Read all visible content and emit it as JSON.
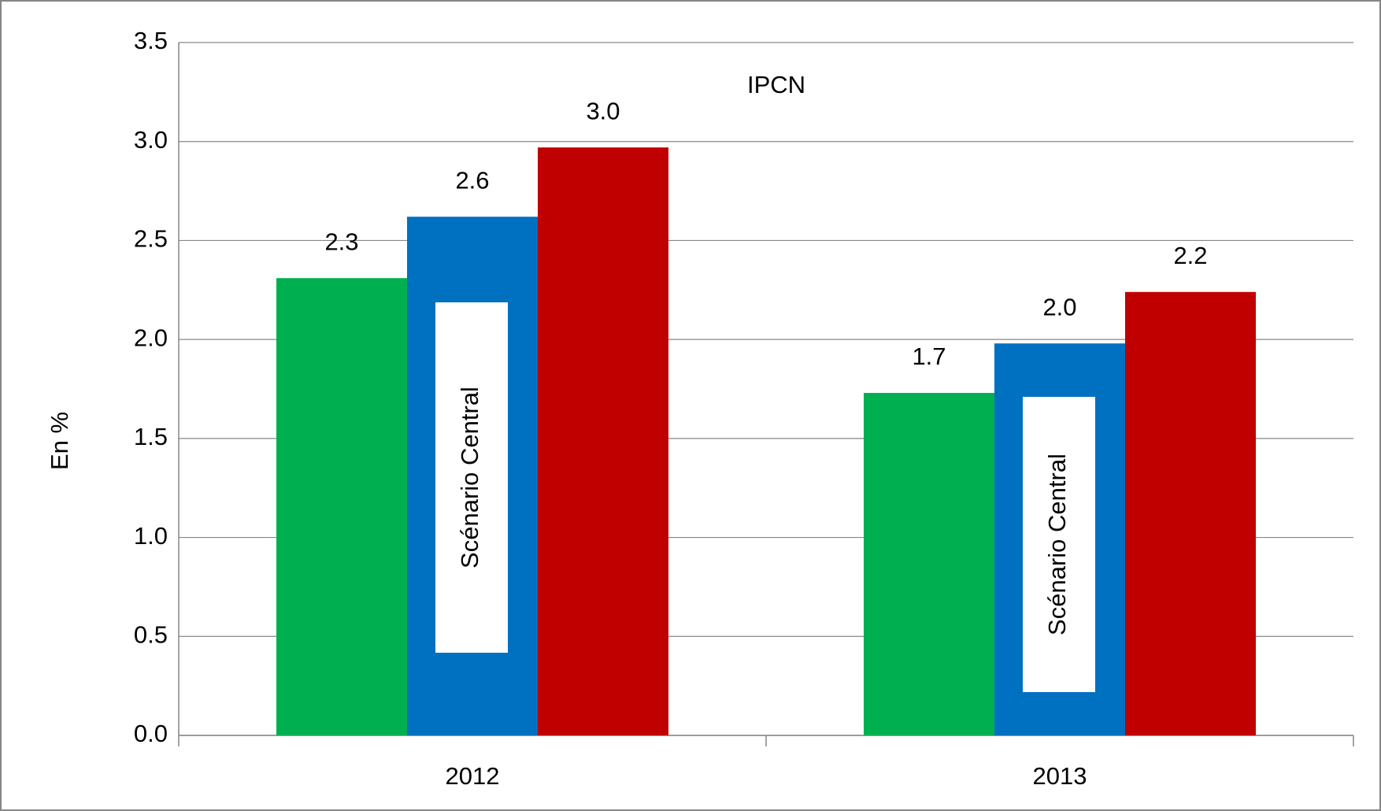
{
  "chart_data": {
    "type": "bar",
    "title": "IPCN",
    "y_label": "En %",
    "categories": [
      "2012",
      "2013"
    ],
    "series": [
      {
        "color": "#00b050",
        "values": [
          2.31,
          1.73
        ],
        "value_labels": [
          "2.3",
          "1.7"
        ]
      },
      {
        "color": "#0070c0",
        "values": [
          2.62,
          1.98
        ],
        "value_labels": [
          "2.6",
          "2.0"
        ]
      },
      {
        "color": "#c00000",
        "values": [
          2.97,
          2.24
        ],
        "value_labels": [
          "3.0",
          "2.2"
        ]
      }
    ],
    "annotations": [
      "Scénario Central",
      "Scénario Central"
    ],
    "ylim": [
      0,
      3.5
    ],
    "yticks": [
      {
        "value": 0,
        "label": "0.0"
      },
      0.5,
      {
        "value": 1,
        "label": "1.0"
      },
      1.5,
      {
        "value": 2,
        "label": "2.0"
      },
      2.5,
      {
        "value": 3,
        "label": "3.0"
      },
      3.5
    ],
    "grid": true
  }
}
